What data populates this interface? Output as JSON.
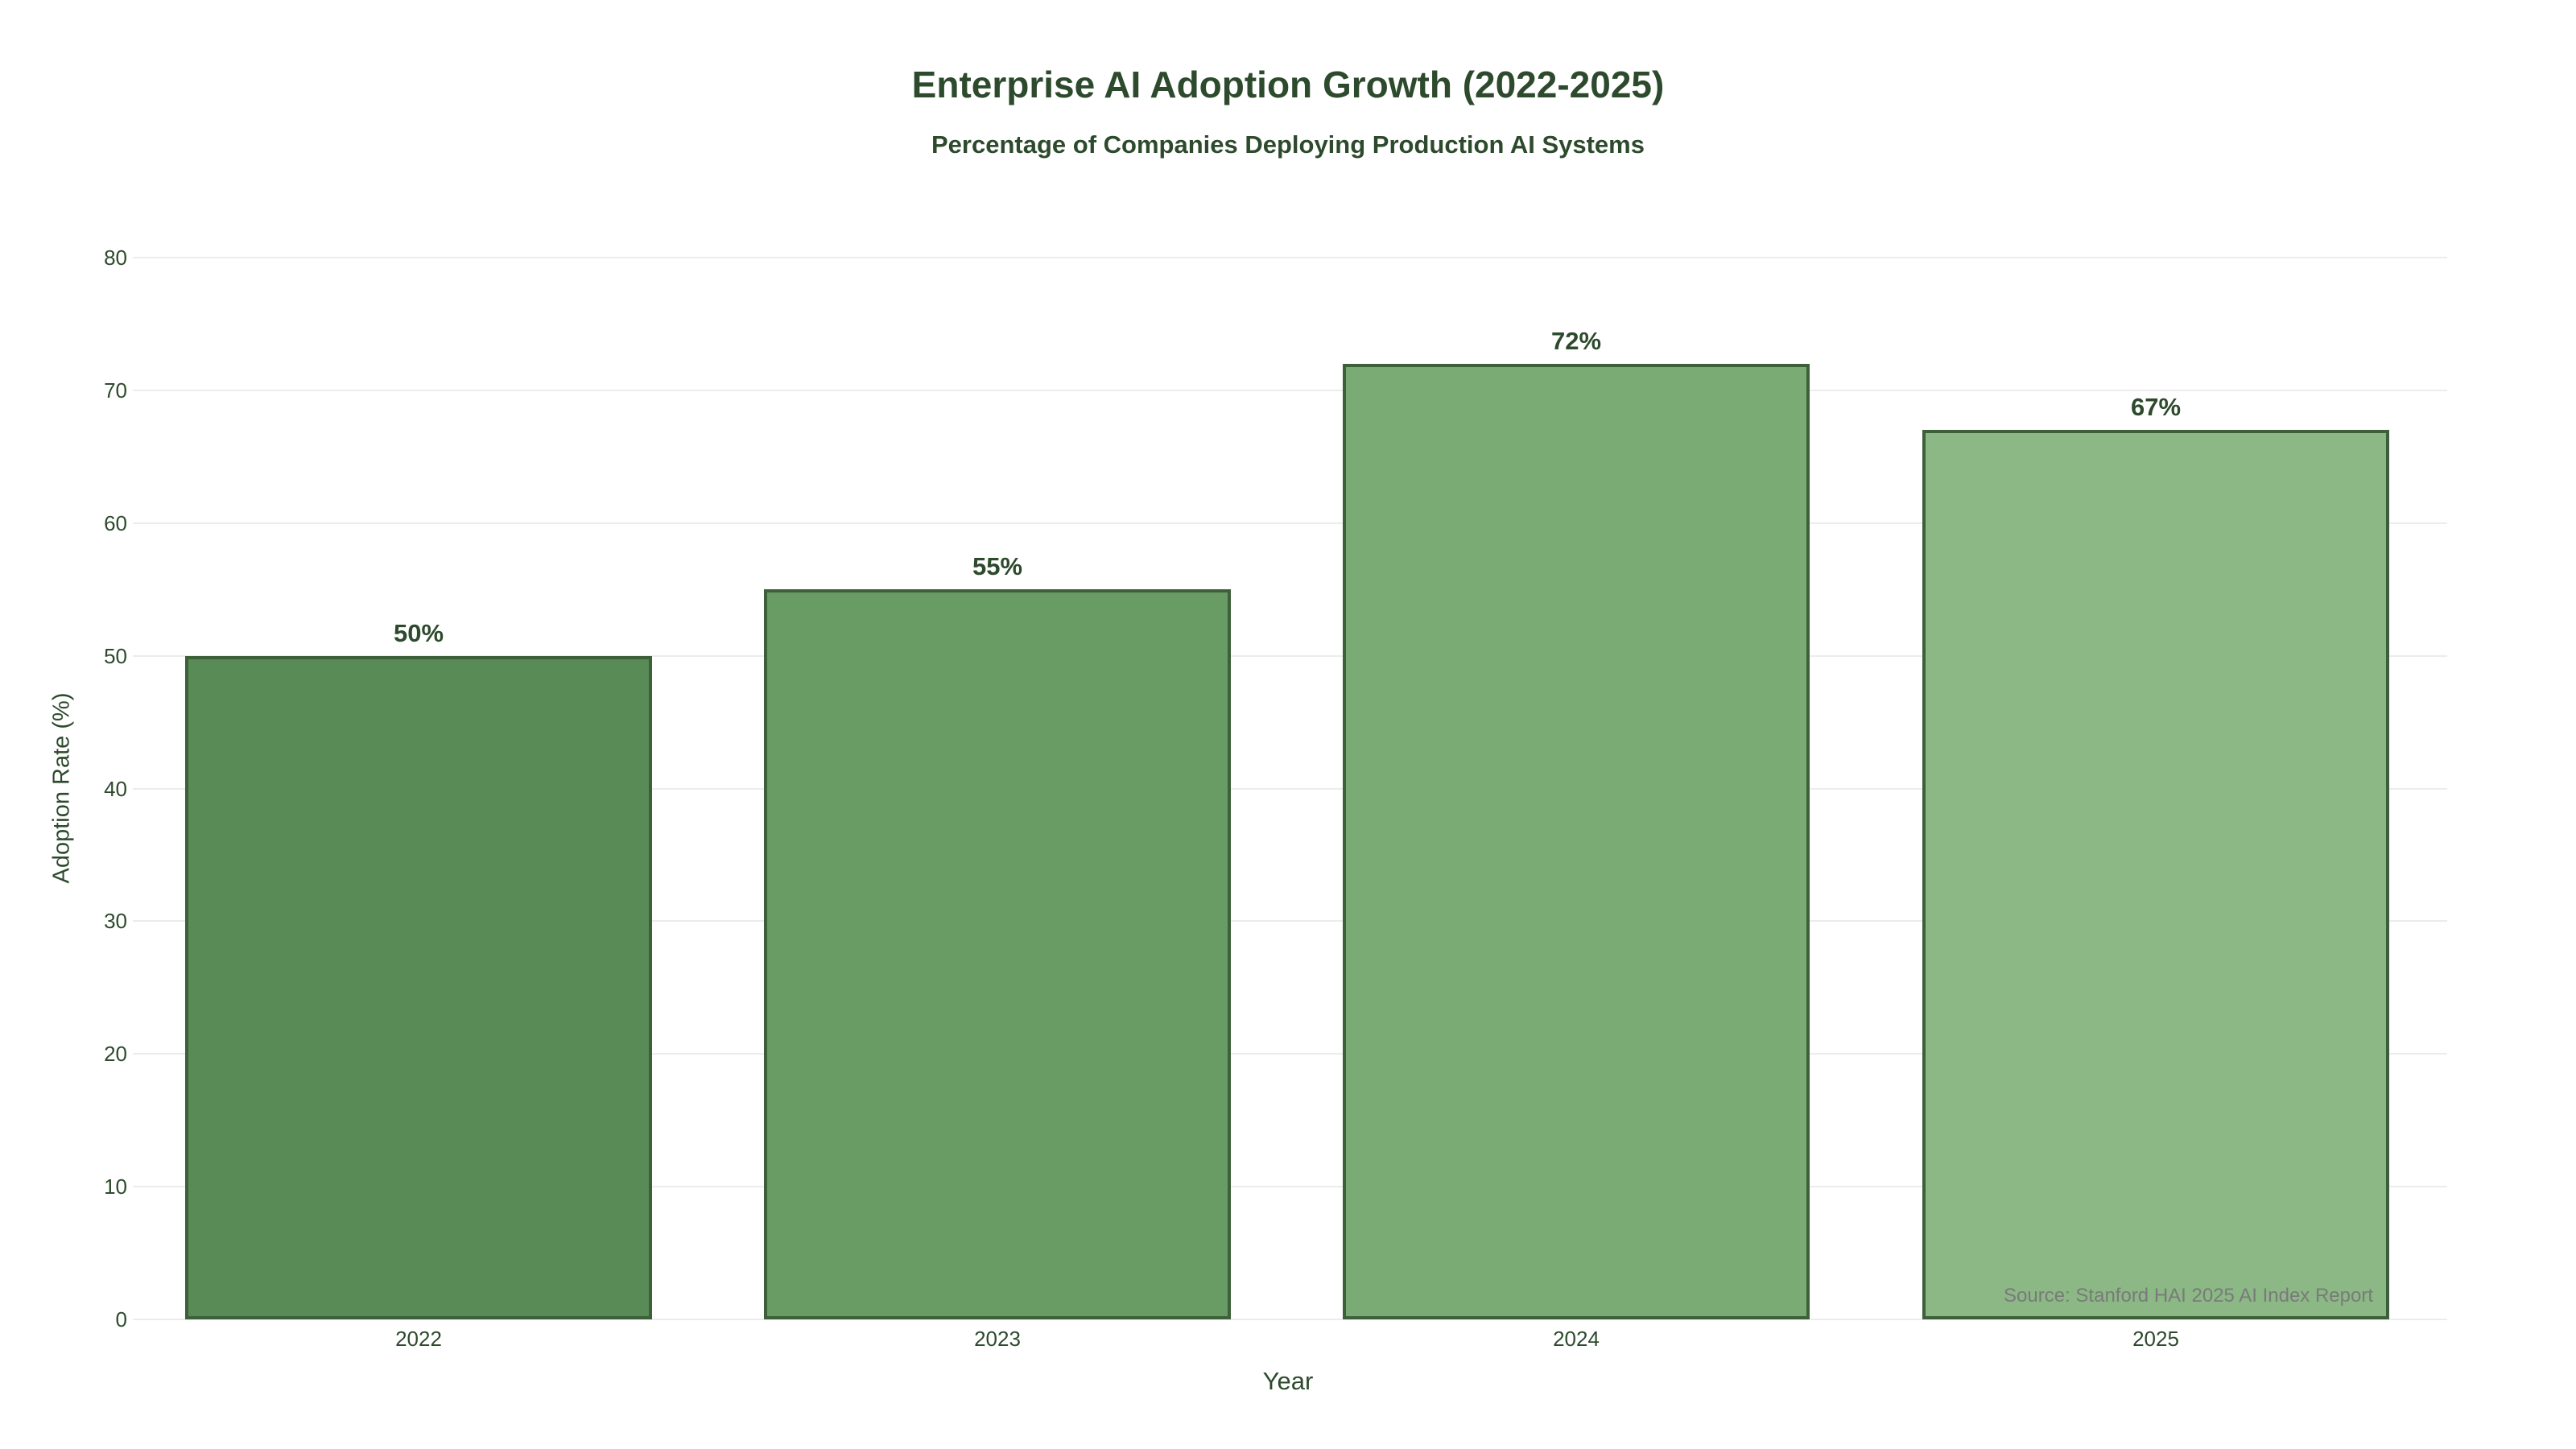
{
  "chart_data": {
    "type": "bar",
    "title": "Enterprise AI Adoption Growth (2022-2025)",
    "subtitle": "Percentage of Companies Deploying Production AI Systems",
    "xlabel": "Year",
    "ylabel": "Adoption Rate (%)",
    "categories": [
      "2022",
      "2023",
      "2024",
      "2025"
    ],
    "values": [
      50,
      55,
      72,
      67
    ],
    "value_labels": [
      "50%",
      "55%",
      "72%",
      "67%"
    ],
    "bar_colors": [
      "#588b55",
      "#699b64",
      "#7aab74",
      "#8bb885"
    ],
    "bar_edge_color": "#3d603a",
    "ylim": [
      0,
      80
    ],
    "yticks": [
      0,
      10,
      20,
      30,
      40,
      50,
      60,
      70,
      80
    ],
    "grid": true,
    "gridline_color": "#ececec",
    "text_color": "#2d4a2d",
    "background_color": "#ffffff",
    "legend": "none",
    "source_note": "Source: Stanford HAI 2025 AI Index Report",
    "source_color": "#7a7a7a"
  }
}
